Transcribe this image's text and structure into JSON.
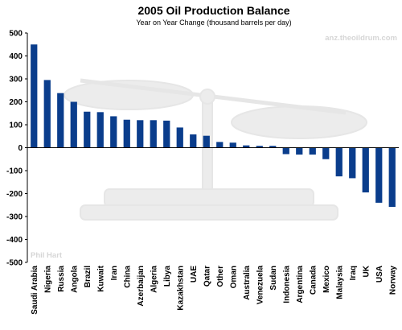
{
  "chart_data": {
    "type": "bar",
    "title": "2005 Oil Production Balance",
    "subtitle": "Year on Year Change (thousand barrels per day)",
    "categories": [
      "Saudi Arabia",
      "Nigeria",
      "Russia",
      "Angola",
      "Brazil",
      "Kuwait",
      "Iran",
      "China",
      "Azerbaijan",
      "Algeria",
      "Libya",
      "Kazakhstan",
      "UAE",
      "Qatar",
      "Other",
      "Oman",
      "Australia",
      "Venezuela",
      "Sudan",
      "Indonesia",
      "Argentina",
      "Canada",
      "Mexico",
      "Malaysia",
      "Iraq",
      "UK",
      "USA",
      "Norway"
    ],
    "values": [
      450,
      295,
      238,
      200,
      157,
      155,
      137,
      122,
      120,
      120,
      118,
      88,
      58,
      52,
      25,
      22,
      10,
      8,
      8,
      -28,
      -30,
      -30,
      -50,
      -125,
      -133,
      -195,
      -240,
      -258
    ],
    "ylim": [
      -500,
      500
    ],
    "yticks": [
      -500,
      -400,
      -300,
      -200,
      -100,
      0,
      100,
      200,
      300,
      400,
      500
    ],
    "bar_color": "#0a3d8c",
    "grid": false,
    "watermarks": {
      "site": "anz.theoildrum.com",
      "author": "Phil Hart"
    }
  }
}
